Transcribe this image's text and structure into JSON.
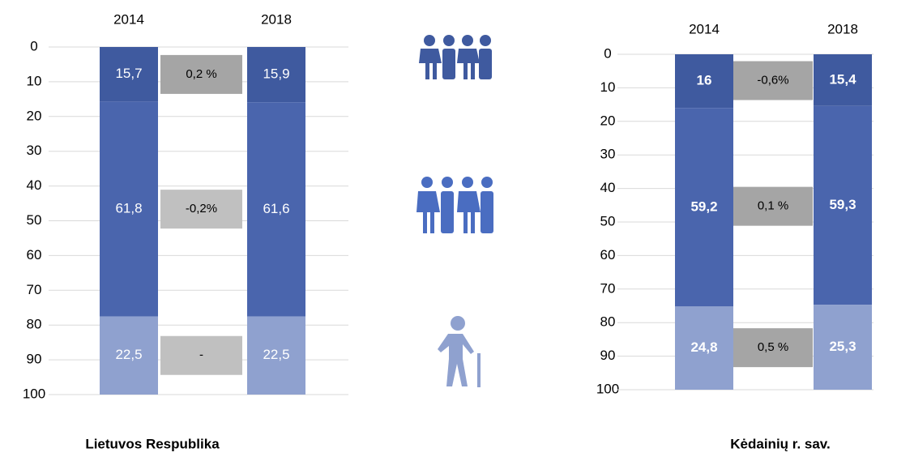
{
  "chart_data": [
    {
      "type": "bar",
      "stacked": true,
      "inverted": true,
      "title": "Lietuvos Respublika",
      "categories": [
        "2014",
        "2018"
      ],
      "series": [
        {
          "color": "#3f5a9f",
          "values": [
            15.7,
            15.9
          ],
          "value_labels": [
            "15,7",
            "15,9"
          ]
        },
        {
          "color": "#4a65ad",
          "values": [
            61.8,
            61.6
          ],
          "value_labels": [
            "61,8",
            "61,6"
          ]
        },
        {
          "color": "#8fa1cf",
          "values": [
            22.5,
            22.5
          ],
          "value_labels": [
            "22,5",
            "22,5"
          ]
        }
      ],
      "annotations": [
        "0,2 %",
        "-0,2%",
        "-"
      ],
      "annotation_colors": [
        "#a5a5a5",
        "#c0c0c0",
        "#c0c0c0"
      ],
      "label_bold": false,
      "ylim": [
        0,
        100
      ],
      "yticks": [
        0,
        10,
        20,
        30,
        40,
        50,
        60,
        70,
        80,
        90,
        100
      ],
      "grid": true
    },
    {
      "type": "bar",
      "stacked": true,
      "inverted": true,
      "title": "Kėdainių r. sav.",
      "categories": [
        "2014",
        "2018"
      ],
      "series": [
        {
          "color": "#3f5a9f",
          "values": [
            16,
            15.4
          ],
          "value_labels": [
            "16",
            "15,4"
          ]
        },
        {
          "color": "#4a65ad",
          "values": [
            59.2,
            59.3
          ],
          "value_labels": [
            "59,2",
            "59,3"
          ]
        },
        {
          "color": "#8fa1cf",
          "values": [
            24.8,
            25.3
          ],
          "value_labels": [
            "24,8",
            "25,3"
          ]
        }
      ],
      "annotations": [
        "-0,6%",
        "0,1 %",
        "0,5 %"
      ],
      "annotation_colors": [
        "#a5a5a5",
        "#a5a5a5",
        "#a5a5a5"
      ],
      "label_bold": true,
      "ylim": [
        0,
        100
      ],
      "yticks": [
        0,
        10,
        20,
        30,
        40,
        50,
        60,
        70,
        80,
        90,
        100
      ],
      "grid": true
    }
  ]
}
